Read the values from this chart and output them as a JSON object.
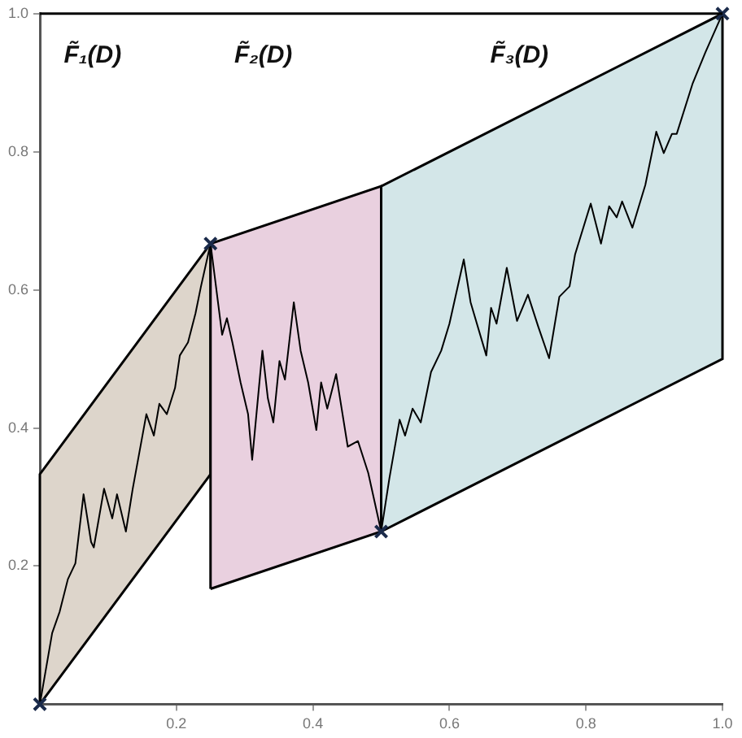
{
  "chart_data": {
    "type": "line",
    "xlim": [
      0,
      1
    ],
    "ylim": [
      0,
      1
    ],
    "xticks": [
      0.2,
      0.4,
      0.6,
      0.8,
      {
        "value": 1,
        "label": "1.0"
      }
    ],
    "yticks": [
      0.2,
      0.4,
      0.6,
      0.8,
      {
        "value": 1,
        "label": "1.0"
      }
    ],
    "grid": false,
    "legend": false,
    "series": [
      {
        "type": "area",
        "x": [
          0,
          0.25
        ],
        "values": [
          null,
          null
        ],
        "lower": [
          0,
          0.333
        ],
        "upper": [
          0.333,
          0.667
        ],
        "color": "#ddd5cb"
      },
      {
        "type": "area",
        "x": [
          0.25,
          0.5
        ],
        "values": [
          null,
          null
        ],
        "lower": [
          0.167,
          0.25
        ],
        "upper": [
          0.667,
          0.75
        ],
        "color": "#e9d0df"
      },
      {
        "type": "area",
        "x": [
          0.5,
          1
        ],
        "values": [
          null,
          null
        ],
        "lower": [
          0.25,
          0.5
        ],
        "upper": [
          0.75,
          1
        ],
        "color": "#d3e6e8"
      },
      {
        "color": "#000000",
        "marker": "none",
        "x": [
          0,
          0.018,
          0.029,
          0.041,
          0.052,
          0.064,
          0.075,
          0.079,
          0.094,
          0.106,
          0.113,
          0.126,
          0.136,
          0.156,
          0.167,
          0.175,
          0.186,
          0.198,
          0.205,
          0.217,
          0.228,
          0.236,
          0.25,
          0.267,
          0.274,
          0.282,
          0.294,
          0.305,
          0.311,
          0.326,
          0.334,
          0.342,
          0.351,
          0.359,
          0.372,
          0.382,
          0.393,
          0.405,
          0.412,
          0.421,
          0.434,
          0.451,
          0.466,
          0.481,
          0.5,
          0.512,
          0.527,
          0.535,
          0.546,
          0.558,
          0.573,
          0.588,
          0.6,
          0.621,
          0.631,
          0.654,
          0.661,
          0.669,
          0.684,
          0.699,
          0.715,
          0.73,
          0.746,
          0.761,
          0.776,
          0.784,
          0.807,
          0.822,
          0.834,
          0.845,
          0.853,
          0.868,
          0.887,
          0.903,
          0.914,
          0.926,
          0.933,
          0.956,
          0.975,
          1
        ],
        "values": [
          0,
          0.103,
          0.134,
          0.181,
          0.204,
          0.304,
          0.235,
          0.227,
          0.312,
          0.269,
          0.304,
          0.25,
          0.312,
          0.42,
          0.389,
          0.435,
          0.42,
          0.458,
          0.505,
          0.524,
          0.566,
          0.605,
          0.667,
          0.535,
          0.559,
          0.524,
          0.466,
          0.42,
          0.354,
          0.512,
          0.443,
          0.408,
          0.497,
          0.47,
          0.582,
          0.512,
          0.466,
          0.397,
          0.466,
          0.428,
          0.478,
          0.373,
          0.381,
          0.335,
          0.25,
          0.327,
          0.412,
          0.389,
          0.428,
          0.408,
          0.481,
          0.512,
          0.551,
          0.644,
          0.582,
          0.505,
          0.574,
          0.551,
          0.632,
          0.555,
          0.593,
          0.547,
          0.501,
          0.59,
          0.605,
          0.651,
          0.725,
          0.667,
          0.721,
          0.705,
          0.728,
          0.69,
          0.752,
          0.829,
          0.798,
          0.826,
          0.826,
          0.898,
          0.944,
          1
        ]
      },
      {
        "type": "scatter",
        "color": "#1a2a4a",
        "marker": "cross",
        "x": [
          0,
          0.25,
          0.5,
          1
        ],
        "values": [
          0,
          0.667,
          0.25,
          1
        ]
      }
    ],
    "ref_lines": [
      {
        "axis": "y",
        "value": 1,
        "color": "#000000"
      }
    ],
    "annotations": [
      "F̃₁(D)",
      "F̃₂(D)",
      "F̃₃(D)"
    ]
  }
}
